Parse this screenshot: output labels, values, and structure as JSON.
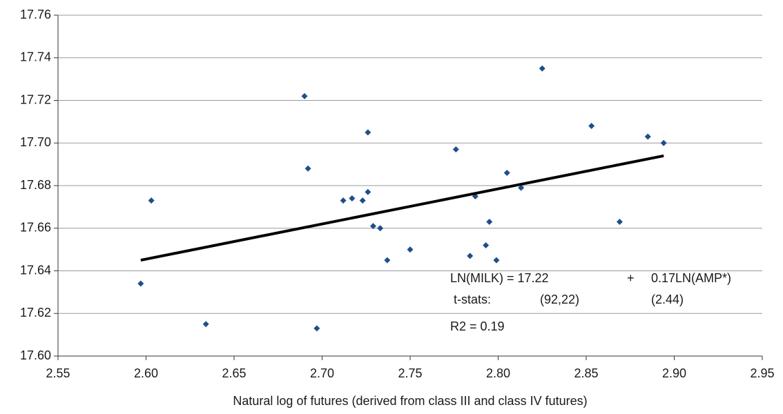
{
  "chart_data": {
    "type": "scatter",
    "x_label": "Natural log of futures (derived from class III and class IV futures)",
    "x": [
      2.597,
      2.603,
      2.634,
      2.69,
      2.692,
      2.697,
      2.712,
      2.717,
      2.723,
      2.726,
      2.726,
      2.729,
      2.733,
      2.737,
      2.75,
      2.776,
      2.787,
      2.784,
      2.795,
      2.799,
      2.793,
      2.805,
      2.813,
      2.825,
      2.853,
      2.869,
      2.885,
      2.894
    ],
    "series": [
      {
        "color": "#1f4e8c",
        "values": [
          17.634,
          17.673,
          17.615,
          17.722,
          17.688,
          17.613,
          17.673,
          17.674,
          17.673,
          17.705,
          17.677,
          17.661,
          17.66,
          17.645,
          17.65,
          17.697,
          17.675,
          17.647,
          17.663,
          17.645,
          17.652,
          17.686,
          17.679,
          17.735,
          17.708,
          17.663,
          17.703,
          17.7
        ]
      }
    ],
    "trendline": {
      "x": [
        2.597,
        2.894
      ],
      "y": [
        17.645,
        17.694
      ],
      "color": "#000000"
    },
    "xlim": [
      2.55,
      2.95
    ],
    "xticks": [
      2.55,
      {
        "value": 2.6,
        "label": "2.60"
      },
      2.65,
      {
        "value": 2.7,
        "label": "2.70"
      },
      2.75,
      {
        "value": 2.8,
        "label": "2.80"
      },
      2.85,
      {
        "value": 2.9,
        "label": "2.90"
      },
      2.95
    ],
    "ylim": [
      17.6,
      17.76
    ],
    "yticks": [
      {
        "value": 17.6,
        "label": "17.60"
      },
      17.62,
      17.64,
      17.66,
      17.68,
      {
        "value": 17.7,
        "label": "17.70"
      },
      17.72,
      17.74,
      17.76
    ],
    "grid": true,
    "annotations": [
      [
        "LN(MILK) = 17.22",
        "+",
        "0.17LN(AMP*)"
      ],
      [
        "t-stats:",
        "(92,22)",
        "(2.44)"
      ],
      [
        "R2 = 0.19"
      ]
    ]
  }
}
